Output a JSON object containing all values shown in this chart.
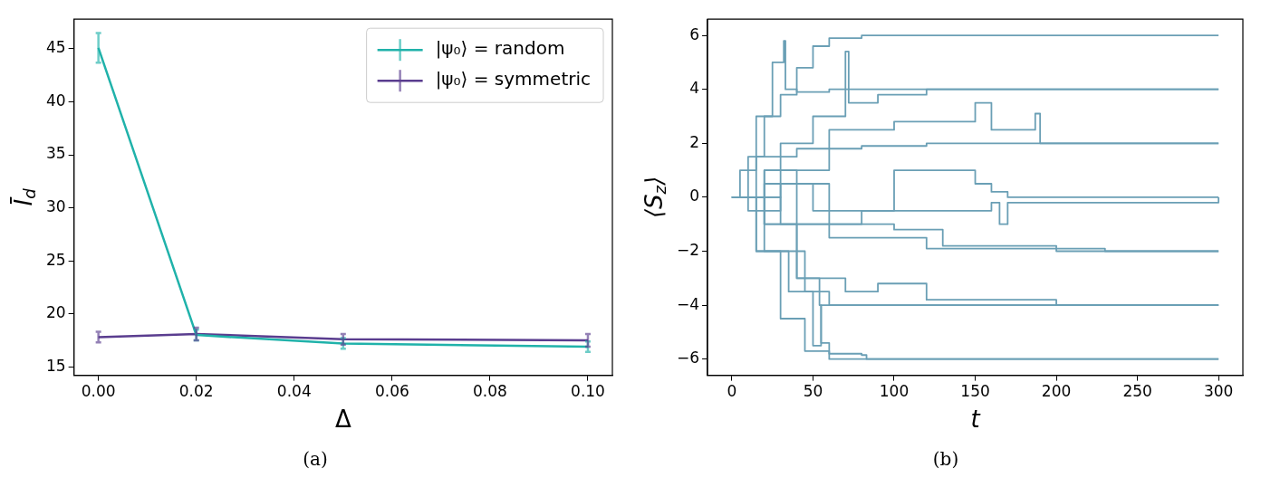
{
  "chart_data": [
    {
      "type": "line",
      "xlabel": "Δ",
      "ylabel": "Ī$_{d}$",
      "annotations": [
        "(a)"
      ],
      "xlim": [
        -0.005,
        0.105
      ],
      "ylim": [
        14.2,
        47.8
      ],
      "xticks": [
        {
          "value": 0,
          "label": "0.00"
        },
        {
          "value": 0.02,
          "label": "0.02"
        },
        {
          "value": 0.04,
          "label": "0.04"
        },
        {
          "value": 0.06,
          "label": "0.06"
        },
        {
          "value": 0.08,
          "label": "0.08"
        },
        {
          "value": 0.1,
          "label": "0.10"
        }
      ],
      "yticks": [
        15,
        20,
        25,
        30,
        35,
        40,
        45
      ],
      "grid": false,
      "legend": "top right",
      "x": [
        0,
        0.02,
        0.05,
        0.1
      ],
      "series": [
        {
          "name": "|ψ₀⟩ = random",
          "color": "#20b2aa",
          "values": [
            45.1,
            18.0,
            17.2,
            16.9
          ],
          "errors": [
            1.4,
            0.5,
            0.5,
            0.5
          ]
        },
        {
          "name": "|ψ₀⟩ = symmetric",
          "color": "#5a3d8f",
          "values": [
            17.8,
            18.1,
            17.6,
            17.5
          ],
          "errors": [
            0.5,
            0.6,
            0.5,
            0.6
          ]
        }
      ]
    },
    {
      "type": "step",
      "xlabel": "t",
      "ylabel": "⟨S$_{z}$⟩",
      "annotations": [
        "(b)"
      ],
      "xlim": [
        -15,
        315
      ],
      "ylim": [
        -6.6,
        6.6
      ],
      "xticks": [
        0,
        50,
        100,
        150,
        200,
        250,
        300
      ],
      "yticks": [
        -6,
        -4,
        -2,
        0,
        2,
        4,
        6
      ],
      "grid": false,
      "legend": false,
      "series": [
        {
          "color": "#6a9fb5",
          "x": [
            0,
            10,
            20,
            30,
            40,
            50,
            60,
            80,
            300
          ],
          "values": [
            0,
            1.5,
            3,
            3.8,
            4.8,
            5.6,
            5.9,
            6,
            6
          ]
        },
        {
          "color": "#6a9fb5",
          "x": [
            0,
            5,
            15,
            25,
            32,
            33,
            40,
            60,
            300
          ],
          "values": [
            0,
            1,
            3,
            5,
            5.8,
            4,
            3.9,
            4,
            4
          ]
        },
        {
          "color": "#6a9fb5",
          "x": [
            0,
            10,
            30,
            50,
            70,
            72,
            90,
            120,
            300
          ],
          "values": [
            0,
            -0.5,
            2,
            3,
            5.4,
            3.5,
            3.8,
            4,
            4
          ]
        },
        {
          "color": "#6a9fb5",
          "x": [
            0,
            20,
            60,
            100,
            150,
            160,
            187,
            190,
            300
          ],
          "values": [
            0,
            1,
            2.5,
            2.8,
            3.5,
            2.5,
            3.1,
            2,
            2
          ]
        },
        {
          "color": "#6a9fb5",
          "x": [
            0,
            15,
            40,
            80,
            120,
            300
          ],
          "values": [
            0,
            1.5,
            1.8,
            1.9,
            2,
            2
          ]
        },
        {
          "color": "#6a9fb5",
          "x": [
            0,
            20,
            50,
            100,
            150,
            160,
            170,
            300
          ],
          "values": [
            0,
            0.5,
            -0.5,
            1,
            0.5,
            0.2,
            0,
            0
          ]
        },
        {
          "color": "#6a9fb5",
          "x": [
            0,
            30,
            80,
            160,
            165,
            170,
            300
          ],
          "values": [
            0,
            -1,
            -0.5,
            -0.2,
            -1,
            -0.2,
            0
          ]
        },
        {
          "color": "#6a9fb5",
          "x": [
            0,
            20,
            50,
            100,
            130,
            200,
            300
          ],
          "values": [
            0,
            -1,
            -1,
            -1.2,
            -1.8,
            -2,
            -2
          ]
        },
        {
          "color": "#6a9fb5",
          "x": [
            0,
            30,
            60,
            120,
            230,
            300
          ],
          "values": [
            0,
            0.5,
            -1.5,
            -1.9,
            -2,
            -2
          ]
        },
        {
          "color": "#6a9fb5",
          "x": [
            0,
            20,
            40,
            70,
            90,
            120,
            200,
            300
          ],
          "values": [
            0,
            -2,
            -3,
            -3.5,
            -3.2,
            -3.8,
            -4,
            -4
          ]
        },
        {
          "color": "#6a9fb5",
          "x": [
            0,
            15,
            35,
            60,
            300
          ],
          "values": [
            0,
            -2,
            -3.5,
            -4,
            -4
          ]
        },
        {
          "color": "#6a9fb5",
          "x": [
            0,
            15,
            30,
            45,
            60,
            300
          ],
          "values": [
            0,
            -2,
            -4.5,
            -5.7,
            -6,
            -6
          ]
        },
        {
          "color": "#6a9fb5",
          "x": [
            0,
            20,
            40,
            54,
            55,
            60,
            80,
            83,
            300
          ],
          "values": [
            0,
            -1,
            -3,
            -4,
            -5.4,
            -5.8,
            -5.85,
            -6,
            -6
          ]
        },
        {
          "color": "#6a9fb5",
          "x": [
            0,
            20,
            40,
            45,
            50,
            55,
            300
          ],
          "values": [
            0,
            1,
            -2,
            -3.5,
            -5.5,
            -4,
            -4
          ]
        }
      ]
    }
  ]
}
